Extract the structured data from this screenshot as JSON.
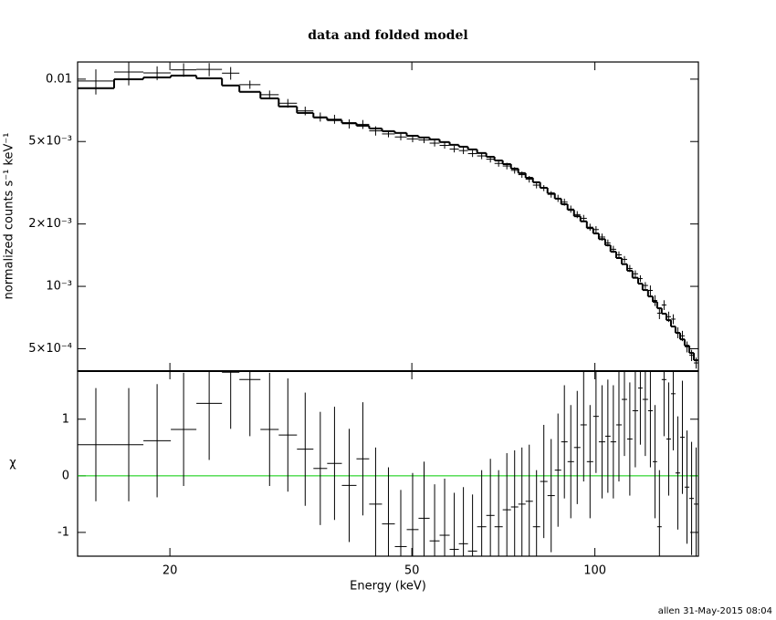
{
  "chart_data": {
    "type": "spectrum_residuals",
    "title": "data and folded model",
    "x_label": "Energy (keV)",
    "xscale": "log",
    "xlim": [
      14.1,
      148
    ],
    "xticks": [
      20,
      50,
      100
    ],
    "bins": [
      14.1,
      16.19,
      18.09,
      20.07,
      22.11,
      24.36,
      26.02,
      28.18,
      30.2,
      32.36,
      34.44,
      36.28,
      38.36,
      40.54,
      42.54,
      44.66,
      46.88,
      49.04,
      51.28,
      53.48,
      55.54,
      57.7,
      59.74,
      61.84,
      64.02,
      66.28,
      68.38,
      70.54,
      72.78,
      74.82,
      76.92,
      79.08,
      81.28,
      83.58,
      85.92,
      88.02,
      90.18,
      92.4,
      94.68,
      97.0,
      99.38,
      101.5,
      104.0,
      106.1,
      108.4,
      110.7,
      113.0,
      115.3,
      117.8,
      119.8,
      122.3,
      124.5,
      126.6,
      128.8,
      131.1,
      133.4,
      135.7,
      138.1,
      140.5,
      143.0,
      145.5,
      148.0
    ],
    "top": {
      "y_label": "normalized counts s⁻¹ keV⁻¹",
      "yscale": "log",
      "ylim": [
        0.00039,
        0.0121
      ],
      "yticks": [
        0.01,
        {
          "value": 0.005,
          "label": "5×10⁻³"
        },
        {
          "value": 0.002,
          "label": "2×10⁻³"
        },
        {
          "value": 0.001,
          "label": "10⁻³"
        },
        {
          "value": 0.0005,
          "label": "5×10⁻⁴"
        }
      ],
      "series": [
        {
          "color": "#000000",
          "values": [
            0.00979,
            0.01083,
            0.01071,
            0.01109,
            0.01114,
            0.01069,
            0.00941,
            0.00841,
            0.00765,
            0.00703,
            0.00657,
            0.00641,
            0.00609,
            0.00605,
            0.00563,
            0.00544,
            0.00526,
            0.00515,
            0.00509,
            0.00491,
            0.00479,
            0.0046,
            0.00452,
            0.00437,
            0.00426,
            0.00411,
            0.00392,
            0.00381,
            0.00363,
            0.00346,
            0.00329,
            0.00308,
            0.00298,
            0.00278,
            0.00266,
            0.00255,
            0.00236,
            0.00222,
            0.00213,
            0.00193,
            0.00188,
            0.00173,
            0.00162,
            0.00151,
            0.00142,
            0.00135,
            0.00122,
            0.00115,
            0.00109,
            0.00101,
            0.000956,
            0.000855,
            0.000742,
            0.000813,
            0.000714,
            0.000695,
            0.000598,
            0.000577,
            0.000511,
            0.000465,
            0.000427
          ],
          "errors": [
            0.00136,
            0.0015,
            0.00082,
            0.00083,
            0.00081,
            0.00075,
            0.00043,
            0.0004,
            0.00037,
            0.00034,
            0.00033,
            0.00032,
            0.00031,
            0.0003,
            0.00029,
            0.0002,
            0.00019,
            0.00019,
            0.00018,
            0.00018,
            0.00017,
            0.00017,
            0.00017,
            0.00016,
            0.00015,
            0.00015,
            0.00014,
            0.00014,
            0.00013,
            0.00012,
            0.00012,
            0.00011,
            0.0001,
            0.0001,
            0.000106,
            0.0001,
            9.4e-05,
            8.7e-05,
            8.2e-05,
            7.6e-05,
            7.2e-05,
            6.8e-05,
            6.3e-05,
            5.9e-05,
            5.5e-05,
            5.1e-05,
            4.8e-05,
            4.4e-05,
            4.1e-05,
            3.8e-05,
            5.4e-05,
            5.1e-05,
            4.7e-05,
            4.4e-05,
            4.1e-05,
            3.8e-05,
            3.6e-05,
            3.3e-05,
            3.1e-05,
            2.9e-05,
            2.6e-05
          ]
        },
        {
          "color": "#000000",
          "values": [
            0.00904,
            0.01,
            0.0102,
            0.01041,
            0.0101,
            0.00932,
            0.00868,
            0.00808,
            0.00738,
            0.00687,
            0.00653,
            0.00634,
            0.00614,
            0.00596,
            0.00578,
            0.00561,
            0.0055,
            0.00533,
            0.00523,
            0.00512,
            0.00497,
            0.00482,
            0.00472,
            0.00458,
            0.0044,
            0.00422,
            0.00405,
            0.00389,
            0.0037,
            0.00352,
            0.00334,
            0.00318,
            0.00299,
            0.00281,
            0.00265,
            0.00249,
            0.00234,
            0.00218,
            0.00206,
            0.00191,
            0.0018,
            0.00169,
            0.00158,
            0.00147,
            0.00137,
            0.00128,
            0.00119,
            0.0011,
            0.00103,
            0.00096,
            0.000894,
            0.000842,
            0.000784,
            0.000738,
            0.000687,
            0.00064,
            0.000596,
            0.000555,
            0.000517,
            0.000477,
            0.00044
          ]
        }
      ]
    },
    "bottom": {
      "y_label": "χ",
      "ylim": [
        -1.42,
        1.85
      ],
      "yticks": [
        -1,
        0,
        1
      ],
      "zero_line_color": "#00cc00",
      "series": [
        {
          "color": "#000000",
          "values": [
            0.55,
            0.55,
            0.62,
            0.82,
            1.28,
            1.83,
            1.7,
            0.82,
            0.72,
            0.47,
            0.13,
            0.22,
            -0.17,
            0.3,
            -0.5,
            -0.85,
            -1.25,
            -0.95,
            -0.75,
            -1.15,
            -1.05,
            -1.3,
            -1.2,
            -1.33,
            -0.9,
            -0.7,
            -0.9,
            -0.6,
            -0.55,
            -0.5,
            -0.45,
            -0.9,
            -0.1,
            -0.35,
            0.1,
            0.6,
            0.25,
            0.5,
            0.9,
            0.25,
            1.05,
            0.6,
            0.7,
            0.6,
            0.9,
            1.35,
            0.65,
            1.15,
            1.55,
            1.35,
            1.15,
            0.25,
            -0.9,
            1.7,
            0.65,
            1.45,
            0.05,
            0.68,
            -0.2,
            -0.4,
            -0.5
          ],
          "errors": [
            1,
            1,
            1,
            1,
            1,
            1,
            1,
            1,
            1,
            1,
            1,
            1,
            1,
            1,
            1,
            1,
            1,
            1,
            1,
            1,
            1,
            1,
            1,
            1,
            1,
            1,
            1,
            1,
            1,
            1,
            1,
            1,
            1,
            1,
            1,
            1,
            1,
            1,
            1,
            1,
            1,
            1,
            1,
            1,
            1,
            1,
            1,
            1,
            1,
            1,
            1,
            1,
            1,
            1,
            1,
            1,
            1,
            1,
            1,
            1,
            1
          ]
        }
      ]
    }
  },
  "footer": "allen 31-May-2015 08:04"
}
